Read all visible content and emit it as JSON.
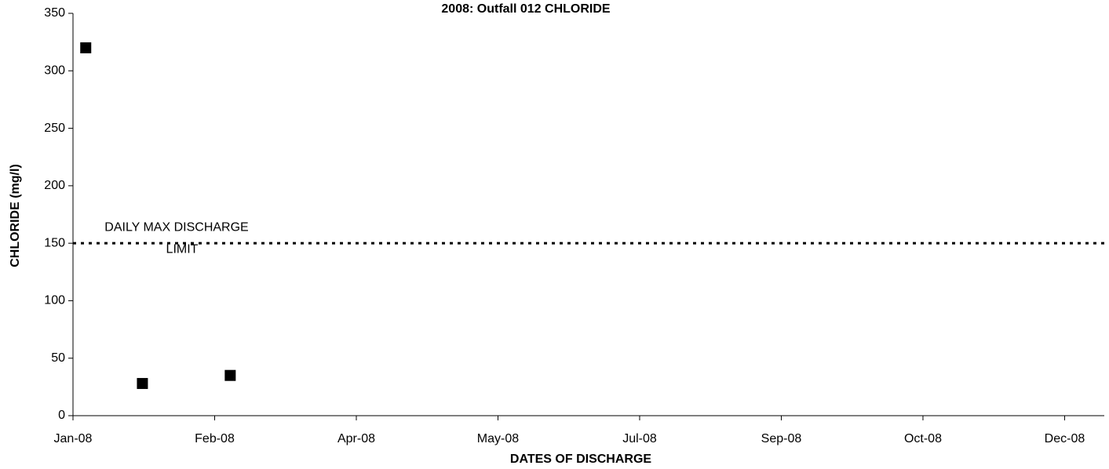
{
  "chart_data": {
    "type": "scatter",
    "title": "2008: Outfall 012 CHLORIDE",
    "xlabel": "DATES OF DISCHARGE",
    "ylabel": "CHLORIDE (mg/l)",
    "series": [
      {
        "name": "CHLORIDE",
        "color": "#000000",
        "x": [
          0.09,
          0.49,
          1.11
        ],
        "values": [
          320,
          28,
          35
        ]
      }
    ],
    "threshold": 150,
    "annotation": [
      "DAILY MAX DISCHARGE",
      "LIMIT"
    ],
    "xlim": [
      0,
      7.28
    ],
    "xticks": [
      {
        "value": 0,
        "label": "Jan-08"
      },
      {
        "value": 1,
        "label": "Feb-08"
      },
      {
        "value": 2,
        "label": "Apr-08"
      },
      {
        "value": 3,
        "label": "May-08"
      },
      {
        "value": 4,
        "label": "Jul-08"
      },
      {
        "value": 5,
        "label": "Sep-08"
      },
      {
        "value": 6,
        "label": "Oct-08"
      },
      {
        "value": 7,
        "label": "Dec-08"
      }
    ],
    "ylim": [
      0,
      350
    ],
    "yticks": [
      0,
      50,
      100,
      150,
      200,
      250,
      300,
      350
    ]
  }
}
